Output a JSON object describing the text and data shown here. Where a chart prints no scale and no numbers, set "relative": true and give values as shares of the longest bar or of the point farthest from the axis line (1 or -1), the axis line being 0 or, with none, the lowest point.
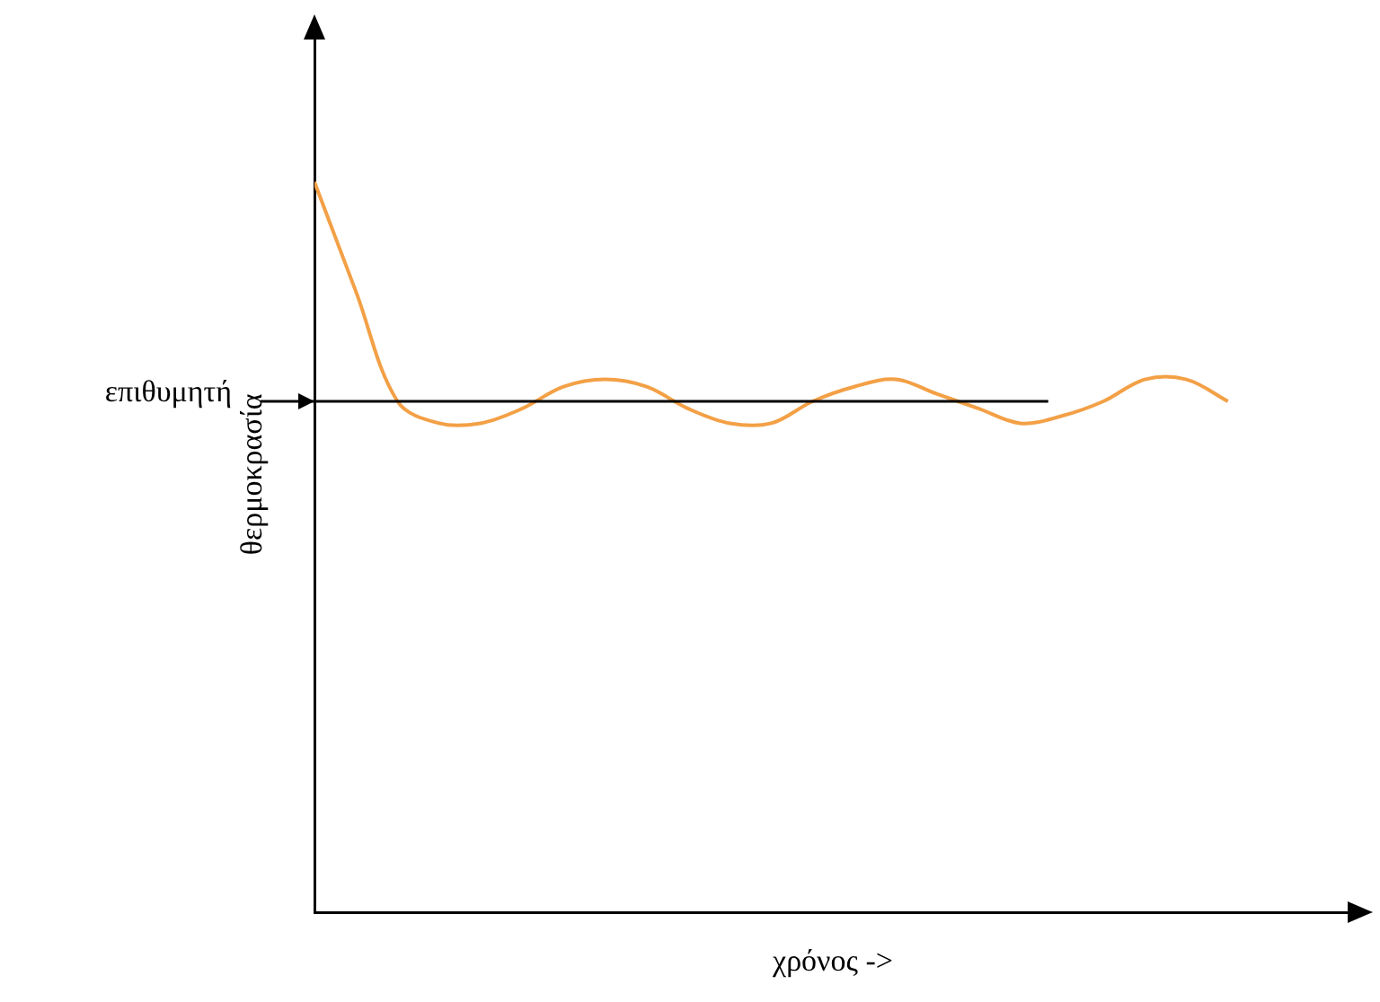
{
  "chart_data": {
    "type": "line",
    "relative": true,
    "xlabel": "χρόνος ->",
    "ylabel": "θερμοκρασία",
    "categories": [
      null,
      null,
      null,
      null,
      null,
      null,
      null,
      null,
      null,
      null,
      null,
      null,
      null,
      null,
      null,
      null,
      null,
      null,
      null,
      null,
      null,
      null,
      null
    ],
    "series": [
      {
        "color": "#f3a046",
        "values": [
          1,
          0.85,
          0.7,
          0.67,
          0.67,
          0.69,
          0.72,
          0.73,
          0.72,
          0.69,
          0.67,
          0.67,
          0.7,
          0.72,
          0.73,
          0.71,
          0.69,
          0.67,
          0.68,
          0.7,
          0.73,
          0.73,
          0.7
        ]
      }
    ],
    "ref_lines": [
      {
        "axis": "y",
        "value": 0.7,
        "label": "επιθυμητή",
        "color": "#000000"
      }
    ],
    "grid": false,
    "legend": false,
    "marker": "none",
    "line_style": "solid"
  }
}
